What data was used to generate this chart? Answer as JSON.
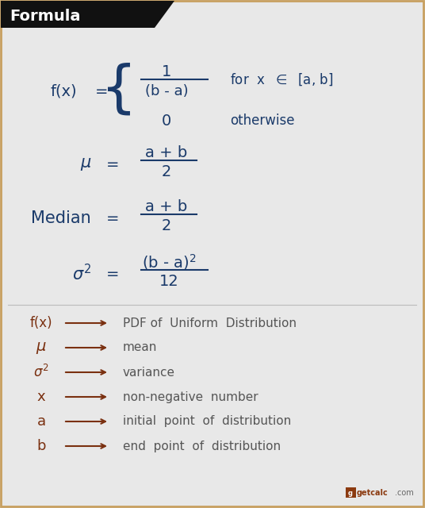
{
  "bg_color": "#e8e8e8",
  "header_bg": "#111111",
  "header_text": "Formula",
  "header_text_color": "#ffffff",
  "formula_color": "#1a3a6a",
  "legend_symbol_color": "#7a3010",
  "legend_text_color": "#555555",
  "border_color": "#c8a060",
  "title_fontsize": 14,
  "formula_fontsize": 13,
  "legend_fontsize": 11,
  "legend_items": [
    [
      "f(x)",
      "PDF of  Uniform  Distribution"
    ],
    [
      "μ",
      "mean"
    ],
    [
      "σ²",
      "variance"
    ],
    [
      "x",
      "non-negative  number"
    ],
    [
      "a",
      "initial  point  of  distribution"
    ],
    [
      "b",
      "end  point  of  distribution"
    ]
  ]
}
